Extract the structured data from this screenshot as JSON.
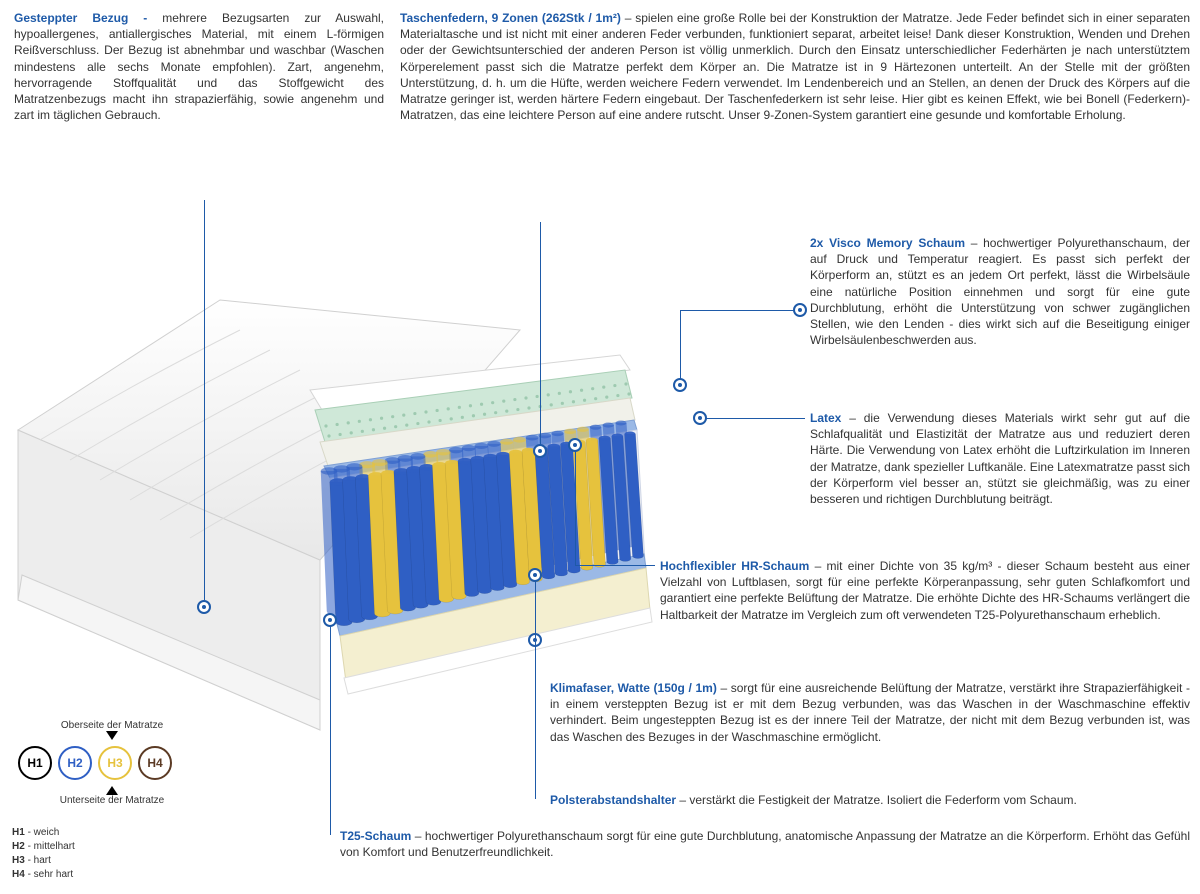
{
  "colors": {
    "accent": "#1e5aa8",
    "text": "#333333",
    "spring_blue": "#2f5fc4",
    "spring_yellow": "#e6c23d",
    "foam_green": "#cfe8d8",
    "foam_cream": "#f4efd0",
    "base_blue": "#9bb9e6",
    "cover_white": "#f3f3f3",
    "cover_stroke": "#d0d0d0"
  },
  "blocks": {
    "bezug": {
      "title": "Gesteppter Bezug - ",
      "body": "mehrere Bezugsarten zur Auswahl, hypoallergenes, antiallergisches Material, mit einem L-förmigen Reißverschluss. Der Bezug ist abnehmbar und waschbar (Waschen mindestens alle sechs Monate empfohlen). Zart, angenehm, hervorragende Stoffqualität und das Stoffgewicht des Matratzenbezugs macht ihn strapazierfähig, sowie angenehm und zart im täglichen Gebrauch."
    },
    "federn": {
      "title": "Taschenfedern, 9 Zonen (262Stk / 1m²) ",
      "body": "– spielen eine große Rolle bei der Konstruktion der Matratze. Jede Feder befindet sich in einer separaten Materialtasche und ist nicht mit einer anderen Feder verbunden, funktioniert separat, arbeitet leise! Dank dieser Konstruktion, Wenden und Drehen oder der Gewichtsunterschied der anderen Person ist völlig unmerklich. Durch den Einsatz unterschiedlicher Federhärten je nach unterstütztem Körperelement passt sich die Matratze perfekt dem Körper an. Die Matratze ist in 9 Härtezonen unterteilt. An der Stelle mit der größten Unterstützung, d. h. um die Hüfte, werden weichere Federn verwendet. Im Lendenbereich und an Stellen, an denen der Druck des Körpers auf die Matratze geringer ist, werden härtere Federn eingebaut. Der Taschenfederkern ist sehr leise. Hier gibt es keinen Effekt, wie bei Bonell (Federkern)- Matratzen, das eine leichtere Person auf eine andere rutscht. Unser 9-Zonen-System garantiert eine gesunde und komfortable Erholung."
    },
    "visco": {
      "title": "2x Visco Memory Schaum ",
      "body": "– hochwertiger Polyurethanschaum, der auf Druck und Temperatur reagiert. Es passt sich perfekt der Körperform an, stützt es an jedem Ort perfekt, lässt die Wirbelsäule eine natürliche Position einnehmen und sorgt für eine gute Durchblutung, erhöht die Unterstützung von schwer zugänglichen Stellen, wie den Lenden - dies wirkt sich auf die Beseitigung einiger Wirbelsäulenbeschwerden aus."
    },
    "latex": {
      "title": "Latex ",
      "body": "– die Verwendung dieses Materials wirkt sehr gut auf die Schlafqualität und Elastizität der Matratze aus und reduziert deren Härte. Die Verwendung von Latex erhöht die Luftzirkulation im Inneren der Matratze, dank spezieller Luftkanäle. Eine Latexmatratze passt sich der Körperform viel besser an, stützt sie gleichmäßig, was zu einer besseren und richtigen Durchblutung beiträgt."
    },
    "hr": {
      "title": "Hochflexibler HR-Schaum ",
      "body": "– mit einer Dichte von 35 kg/m³ - dieser Schaum besteht aus einer Vielzahl von Luftblasen, sorgt für eine perfekte Körperanpassung, sehr guten Schlafkomfort und garantiert eine perfekte Belüftung der Matratze. Die erhöhte Dichte des HR-Schaums verlängert die Haltbarkeit der Matratze im Vergleich zum oft verwendeten T25-Polyurethanschaum erheblich."
    },
    "klima": {
      "title": "Klimafaser, Watte (150g / 1m) ",
      "body": "– sorgt für eine ausreichende Belüftung der Matratze, verstärkt ihre Strapazierfähigkeit - in einem versteppten Bezug ist er mit dem Bezug verbunden, was das Waschen in der Waschmaschine effektiv verhindert. Beim ungesteppten Bezug ist es der innere Teil der Matratze, der nicht mit dem Bezug verbunden ist, was das Waschen des Bezuges in der Waschmaschine ermöglicht."
    },
    "polster": {
      "title": "Polsterabstandshalter ",
      "body": "– verstärkt die Festigkeit der Matratze. Isoliert die Federform vom Schaum."
    },
    "t25": {
      "title": "T25-Schaum ",
      "body": "– hochwertiger Polyurethanschaum sorgt für eine gute Durchblutung, anatomische Anpassung der Matratze an die Körperform. Erhöht das Gefühl von Komfort und Benutzerfreundlichkeit."
    }
  },
  "hardness": {
    "top_label": "Oberseite der Matratze",
    "bottom_label": "Unterseite der Matratze",
    "items": [
      {
        "code": "H1",
        "color": "#000000",
        "desc": "weich"
      },
      {
        "code": "H2",
        "color": "#2f5fc4",
        "desc": "mittelhart"
      },
      {
        "code": "H3",
        "color": "#e6c23d",
        "desc": "hart"
      },
      {
        "code": "H4",
        "color": "#5b3a24",
        "desc": "sehr hart"
      }
    ]
  },
  "diagram": {
    "spring_zones": [
      {
        "color": "#2f5fc4",
        "count": 3
      },
      {
        "color": "#e6c23d",
        "count": 2
      },
      {
        "color": "#2f5fc4",
        "count": 3
      },
      {
        "color": "#e6c23d",
        "count": 2
      },
      {
        "color": "#2f5fc4",
        "count": 4
      },
      {
        "color": "#e6c23d",
        "count": 2
      },
      {
        "color": "#2f5fc4",
        "count": 3
      },
      {
        "color": "#e6c23d",
        "count": 2
      },
      {
        "color": "#2f5fc4",
        "count": 3
      }
    ]
  }
}
